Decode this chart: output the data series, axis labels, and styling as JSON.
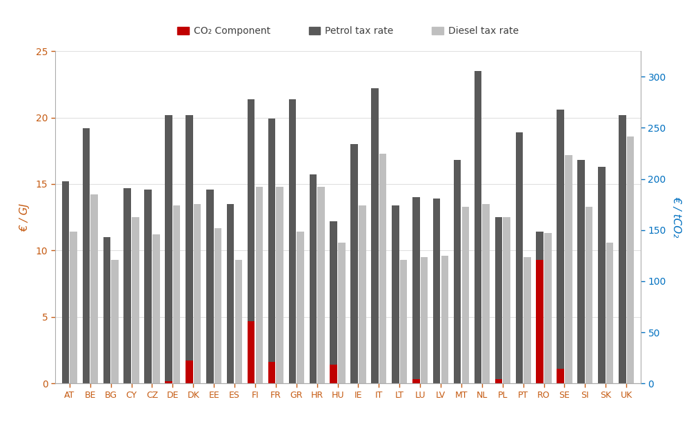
{
  "countries": [
    "AT",
    "BE",
    "BG",
    "CY",
    "CZ",
    "DE",
    "DK",
    "EE",
    "ES",
    "FI",
    "FR",
    "GR",
    "HR",
    "HU",
    "IE",
    "IT",
    "LT",
    "LU",
    "LV",
    "MT",
    "NL",
    "PL",
    "PT",
    "RO",
    "SE",
    "SI",
    "SK",
    "UK"
  ],
  "petrol_tax": [
    15.2,
    19.2,
    11.0,
    14.7,
    14.6,
    20.2,
    20.2,
    14.6,
    13.5,
    21.4,
    19.9,
    21.4,
    15.7,
    12.2,
    18.0,
    22.2,
    13.4,
    14.0,
    13.9,
    16.8,
    23.5,
    12.5,
    18.9,
    11.4,
    20.6,
    16.8,
    16.3,
    20.2
  ],
  "diesel_tax": [
    11.4,
    14.2,
    9.3,
    12.5,
    11.2,
    13.4,
    13.5,
    11.7,
    9.3,
    14.8,
    14.8,
    11.4,
    14.8,
    10.6,
    13.4,
    17.3,
    9.3,
    9.5,
    9.6,
    13.3,
    13.5,
    12.5,
    9.5,
    11.3,
    17.2,
    13.3,
    10.6,
    18.6
  ],
  "co2_component": [
    0.0,
    0.0,
    0.0,
    0.0,
    0.0,
    0.15,
    1.7,
    0.0,
    0.0,
    4.7,
    1.6,
    0.0,
    0.0,
    1.4,
    0.0,
    0.0,
    0.0,
    0.3,
    0.0,
    0.0,
    0.0,
    0.3,
    0.0,
    9.3,
    1.1,
    0.0,
    0.0,
    0.0
  ],
  "petrol_color": "#595959",
  "diesel_color": "#bfbfbf",
  "co2_color": "#c00000",
  "ylabel_left": "€ / GJ",
  "ylabel_right": "€ / tCO₂",
  "ylim_left": [
    0,
    25
  ],
  "ylim_right": [
    0,
    325
  ],
  "yticks_left": [
    0,
    5,
    10,
    15,
    20,
    25
  ],
  "yticks_right": [
    0,
    50,
    100,
    150,
    200,
    250,
    300
  ],
  "legend_labels": [
    "CO₂ Component",
    "Petrol tax rate",
    "Diesel tax rate"
  ],
  "axis_color_left": "#c55a11",
  "axis_color_right": "#0070c0",
  "tick_label_color_left": "#c55a11",
  "tick_label_color_right": "#0070c0",
  "bar_width": 0.35,
  "bar_gap": 0.04
}
